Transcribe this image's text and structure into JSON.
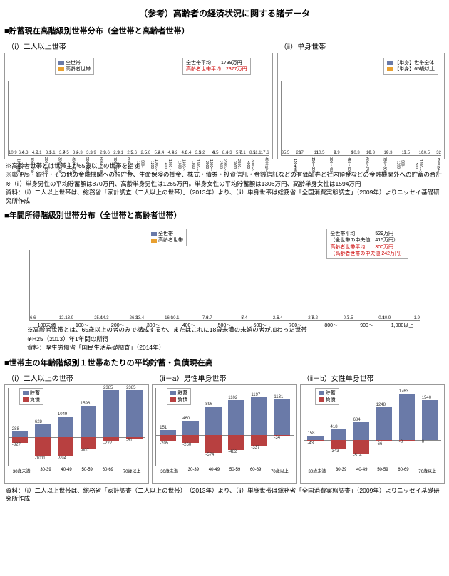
{
  "page_title": "（参考）高齢者の経済状況に関する諸データ",
  "section1": {
    "title": "■貯蓄現在高階級別世帯分布（全世帯と高齢者世帯）",
    "chart_i": {
      "title": "（ⅰ）二人以上世帯",
      "legend": {
        "s1": "全世帯",
        "s2": "高齢者世帯",
        "box1": "全世帯平均　　1739万円",
        "box2": "高齢者世帯平均　2377万円"
      },
      "categories": [
        "100未満",
        "100～200",
        "200～300",
        "300～400",
        "400～500",
        "500～600",
        "600～700",
        "700～800",
        "800～900",
        "900～1000",
        "1000～1200",
        "1200～1400",
        "1400～1600",
        "1600～1800",
        "1800～2000",
        "2000～2500",
        "2500～3000",
        "3000～4000",
        "4000以上"
      ],
      "s1_values": [
        10.9,
        6.3,
        5.1,
        5.1,
        4.5,
        4.3,
        3.9,
        3.6,
        3.1,
        2.6,
        5.6,
        4.4,
        4.2,
        3.4,
        3.2,
        6.5,
        4.3,
        6.1,
        11.1
      ],
      "s2_values": [
        6.4,
        4.2,
        3.1,
        3.7,
        3.2,
        3.1,
        2.9,
        2.9,
        2.5,
        2.5,
        5.2,
        4.2,
        4.8,
        3.5,
        4.0,
        8.1,
        5.7,
        8.5,
        17.6
      ],
      "ylim": [
        0,
        20
      ],
      "ytick": 5,
      "s1_color": "#6a7aa8",
      "s2_color": "#e8a030",
      "bg": "#ffffff"
    },
    "chart_ii": {
      "title": "（ⅱ）単身世帯",
      "legend": {
        "s1": "【単身】世帯全体",
        "s2": "【単身】65歳以上"
      },
      "categories": [
        "150未満",
        "150～300",
        "300～450",
        "450～600",
        "600～750",
        "750～900",
        "900～1200",
        "1200～1500",
        "1500以上"
      ],
      "s1_values": [
        35.5,
        17.0,
        10.5,
        8.9,
        10.3,
        8.3,
        9.3,
        7.5,
        10.5
      ],
      "s2_values": [
        20.0,
        11.0,
        9.0,
        9.0,
        10.0,
        10.0,
        11.0,
        10.0,
        32.0
      ],
      "ylim": [
        0,
        40
      ],
      "ytick": 10,
      "s1_color": "#6a7aa8",
      "s2_color": "#e8a030"
    },
    "notes": [
      "※高齢者世帯とは世帯主が65歳以上の世帯を指す",
      "※郵便局・銀行・その他の金融機関への預貯金、生命保険の掛金、株式・債券・投資信託・金銭信託などの有価証券と社内預金などの金融機関外への貯蓄の合計",
      "※（ⅱ）単身男性の平均貯蓄額は870万円、高齢単身男性は1265万円。単身女性の平均貯蓄額は1306万円、高齢単身女性は1594万円",
      "資料：（ⅰ）二人以上世帯は、総務省「家計調査（二人以上の世帯）」（2013年）より、（ⅱ）単身世帯は総務省「全国消費実態調査」（2009年）よりニッセイ基礎研究所作成"
    ]
  },
  "section2": {
    "title": "■年間所得階級別世帯分布（全世帯と高齢者世帯）",
    "chart": {
      "legend": {
        "s1": "全世帯",
        "s2": "高齢者世帯",
        "box1": "全世帯平均　　　　529万円",
        "box2": "（全世帯の中央値　415万円）",
        "box3": "高齢者世帯平均　　300万円",
        "box4": "（高齢者世帯の中央値 242万円）"
      },
      "categories": [
        "100未満",
        "100～",
        "200～",
        "300～",
        "400～",
        "500～",
        "600～",
        "700～",
        "800～",
        "900～",
        "1,000以上"
      ],
      "s1_values": [
        6.6,
        13.9,
        14.3,
        13.4,
        10.1,
        8.7,
        7.4,
        6.4,
        5.2,
        3.5,
        10.9
      ],
      "s2_values": [
        12.1,
        25.4,
        26.3,
        16.9,
        7.6,
        5.0,
        2.5,
        2.7,
        0.7,
        0.8,
        1.9
      ],
      "ylim": [
        0,
        30
      ],
      "ytick": 5,
      "s1_color": "#6a7aa8",
      "s2_color": "#e8a030"
    },
    "notes": [
      "※高齢者世帯とは、65歳以上の者のみで構成するか、またはこれに18歳未満の未婚の者が加わった世帯",
      "※H25（2013）年1年間の所得",
      "資料：厚生労働省「国民生活基礎調査」（2014年）"
    ]
  },
  "section3": {
    "title": "■世帯主の年齢階級別１世帯あたりの平均貯蓄・負債現在高",
    "legend": {
      "s1": "貯蓄",
      "s2": "負債",
      "s1_color": "#6a7aa8",
      "s2_color": "#b84040"
    },
    "categories": [
      "30歳未満",
      "30-39",
      "40-49",
      "50-59",
      "60-69",
      "70歳以上"
    ],
    "chart_i": {
      "title": "（ⅰ）二人以上の世帯",
      "savings": [
        288,
        628,
        1049,
        1596,
        2385,
        2385
      ],
      "debt": [
        -327,
        -1011,
        -994,
        -607,
        -222,
        -81
      ],
      "ylim_pos": 2500,
      "ylim_neg": -1500,
      "age_labels": [
        "(1.12)",
        "(3.67)",
        "",
        "",
        "",
        ""
      ]
    },
    "chart_iia": {
      "title": "（ⅱ－a）男性単身世帯",
      "savings": [
        151,
        460,
        896,
        1102,
        1197,
        1131
      ],
      "debt": [
        -205,
        -260,
        -574,
        -482,
        -337,
        -34
      ],
      "ylim_pos": 1500,
      "ylim_neg": -1000
    },
    "chart_iib": {
      "title": "（ⅱ－b）女性単身世帯",
      "savings": [
        158,
        418,
        684,
        1248,
        1763,
        1540
      ],
      "debt": [
        -43,
        -343,
        -514,
        -66,
        -8,
        0
      ],
      "ylim_pos": 2000,
      "ylim_neg": -1000
    },
    "notes": [
      "資料：（ⅰ）二人以上世帯は、総務省「家計調査（二人以上の世帯）」（2013年）より、（ⅱ）単身世帯は総務省「全国消費実態調査」（2009年）よりニッセイ基礎研究所作成"
    ]
  }
}
